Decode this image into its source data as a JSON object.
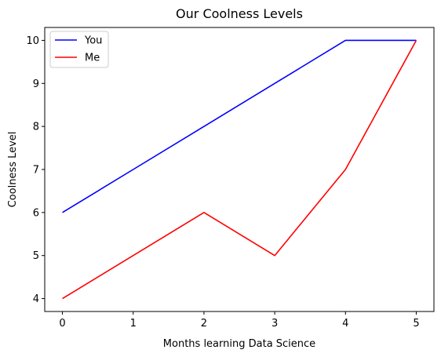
{
  "chart_data": {
    "type": "line",
    "title": "Our Coolness Levels",
    "xlabel": "Months learning Data Science",
    "ylabel": "Coolness Level",
    "x": [
      0,
      1,
      2,
      3,
      4,
      5
    ],
    "xticks": [
      "0",
      "1",
      "2",
      "3",
      "4",
      "5"
    ],
    "yticks": [
      "4",
      "5",
      "6",
      "7",
      "8",
      "9",
      "10"
    ],
    "xlim": [
      -0.25,
      5.25
    ],
    "ylim": [
      3.7,
      10.3
    ],
    "grid": false,
    "legend_position": "upper-left",
    "series": [
      {
        "name": "You",
        "color": "#0000ff",
        "values": [
          6,
          7,
          8,
          9,
          10,
          10
        ]
      },
      {
        "name": "Me",
        "color": "#ff0000",
        "values": [
          4,
          5,
          6,
          5,
          7,
          10
        ]
      }
    ]
  }
}
